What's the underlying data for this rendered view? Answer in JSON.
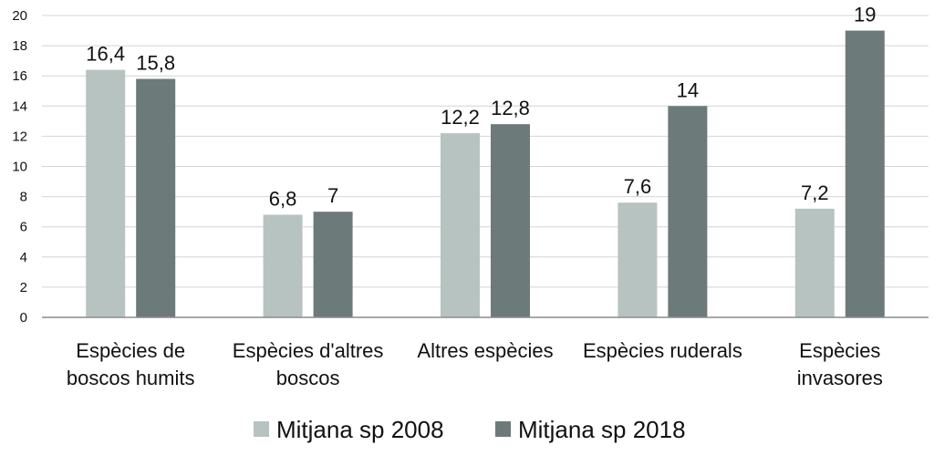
{
  "chart_data": {
    "type": "bar",
    "categories": [
      [
        "Espècies de",
        "boscos humits"
      ],
      [
        "Espècies d'altres",
        "boscos"
      ],
      [
        "Altres espècies"
      ],
      [
        "Espècies ruderals"
      ],
      [
        "Espècies",
        "invasores"
      ]
    ],
    "series": [
      {
        "name": "Mitjana sp 2008",
        "color": "#b7c3c1",
        "values": [
          16.4,
          6.8,
          12.2,
          7.6,
          7.2
        ],
        "labels": [
          "16,4",
          "6,8",
          "12,2",
          "7,6",
          "7,2"
        ]
      },
      {
        "name": "Mitjana sp 2018",
        "color": "#6c7a7a",
        "values": [
          15.8,
          7,
          12.8,
          14,
          19
        ],
        "labels": [
          "15,8",
          "7",
          "12,8",
          "14",
          "19"
        ]
      }
    ],
    "title": "",
    "xlabel": "",
    "ylabel": "",
    "ylim": [
      0,
      20
    ],
    "yticks": [
      0,
      2,
      4,
      6,
      8,
      10,
      12,
      14,
      16,
      18,
      20
    ],
    "grid": true,
    "legend": "bottom-center",
    "grid_color": "#d4d4d4",
    "axis_color": "#8c8c8c"
  }
}
